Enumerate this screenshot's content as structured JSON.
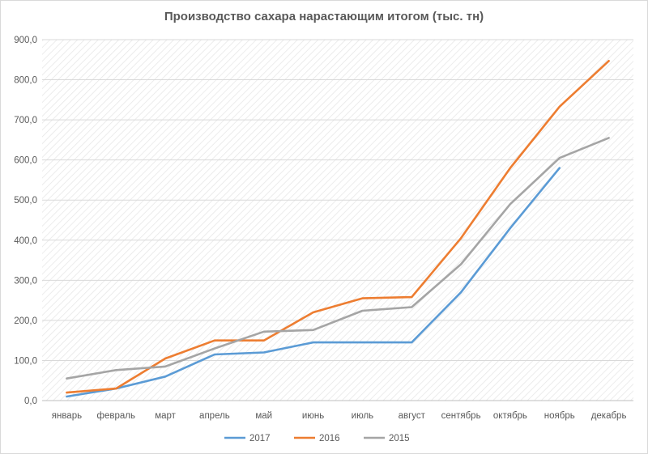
{
  "chart_data": {
    "type": "line",
    "title": "Производство сахара нарастающим итогом (тыс. тн)",
    "xlabel": "",
    "ylabel": "",
    "categories": [
      "январь",
      "февраль",
      "март",
      "апрель",
      "май",
      "июнь",
      "июль",
      "август",
      "сентябрь",
      "октябрь",
      "ноябрь",
      "декабрь"
    ],
    "ylim": [
      0,
      900
    ],
    "yticks": [
      0,
      100,
      200,
      300,
      400,
      500,
      600,
      700,
      800,
      900
    ],
    "ytick_labels": [
      "0,0",
      "100,0",
      "200,0",
      "300,0",
      "400,0",
      "500,0",
      "600,0",
      "700,0",
      "800,0",
      "900,0"
    ],
    "grid": true,
    "legend_position": "bottom",
    "series": [
      {
        "name": "2017",
        "color": "#5b9bd5",
        "values": [
          10,
          30,
          60,
          115,
          120,
          145,
          145,
          145,
          270,
          430,
          580,
          null
        ]
      },
      {
        "name": "2016",
        "color": "#ed7d31",
        "values": [
          20,
          30,
          105,
          150,
          150,
          220,
          255,
          258,
          405,
          580,
          733,
          847
        ]
      },
      {
        "name": "2015",
        "color": "#a5a5a5",
        "values": [
          55,
          76,
          85,
          130,
          172,
          176,
          224,
          233,
          340,
          490,
          605,
          655
        ]
      }
    ]
  }
}
